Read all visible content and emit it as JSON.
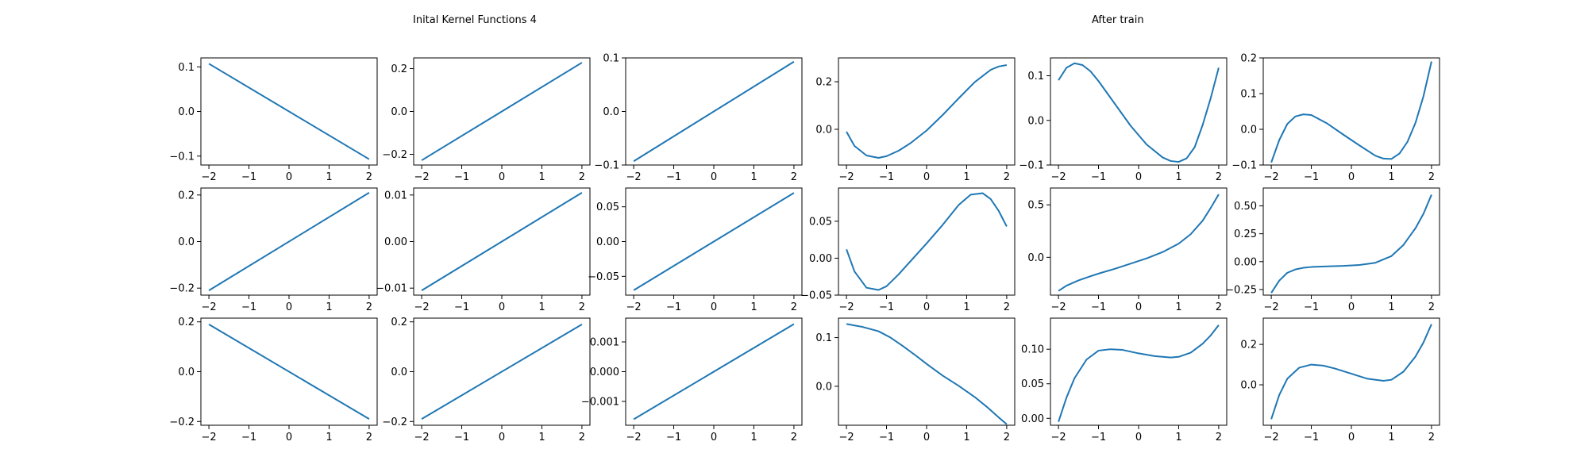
{
  "titles": {
    "left": "Inital Kernel Functions 4",
    "right": "After train"
  },
  "chart_data": {
    "type": "line",
    "grid": false,
    "line_color": "#1f77b4",
    "rows": 3,
    "cols": 6,
    "panels": [
      {
        "xlim": [
          -2.2,
          2.2
        ],
        "ylim": [
          -0.12,
          0.12
        ],
        "xticks": [
          -2,
          -1,
          0,
          1,
          2
        ],
        "xtick_labels": [
          "−2",
          "−1",
          "0",
          "1",
          "2"
        ],
        "yticks": [
          -0.1,
          0,
          0.1
        ],
        "ytick_labels": [
          "−0.1",
          "0.0",
          "0.1"
        ],
        "x": [
          -2,
          2
        ],
        "y": [
          0.107,
          -0.107
        ]
      },
      {
        "xlim": [
          -2.2,
          2.2
        ],
        "ylim": [
          -0.25,
          0.25
        ],
        "xticks": [
          -2,
          -1,
          0,
          1,
          2
        ],
        "xtick_labels": [
          "−2",
          "−1",
          "0",
          "1",
          "2"
        ],
        "yticks": [
          -0.2,
          0,
          0.2
        ],
        "ytick_labels": [
          "−0.2",
          "0.0",
          "0.2"
        ],
        "x": [
          -2,
          2
        ],
        "y": [
          -0.228,
          0.228
        ]
      },
      {
        "xlim": [
          -2.2,
          2.2
        ],
        "ylim": [
          -0.1,
          0.1
        ],
        "xticks": [
          -2,
          -1,
          0,
          1,
          2
        ],
        "xtick_labels": [
          "−2",
          "−1",
          "0",
          "1",
          "2"
        ],
        "yticks": [
          -0.1,
          0,
          0.1
        ],
        "ytick_labels": [
          "−0.1",
          "0.0",
          "0.1"
        ],
        "x": [
          -2,
          2
        ],
        "y": [
          -0.093,
          0.093
        ]
      },
      {
        "xlim": [
          -2.2,
          2.2
        ],
        "ylim": [
          -0.15,
          0.3
        ],
        "xticks": [
          -2,
          -1,
          0,
          1,
          2
        ],
        "xtick_labels": [
          "−2",
          "−1",
          "0",
          "1",
          "2"
        ],
        "yticks": [
          0,
          0.2
        ],
        "ytick_labels": [
          "0.0",
          "0.2"
        ],
        "x": [
          -2,
          -1.8,
          -1.5,
          -1.2,
          -1,
          -0.7,
          -0.4,
          0,
          0.4,
          0.8,
          1.2,
          1.6,
          1.8,
          2
        ],
        "y": [
          -0.01,
          -0.07,
          -0.11,
          -0.12,
          -0.113,
          -0.09,
          -0.058,
          -0.005,
          0.06,
          0.13,
          0.198,
          0.25,
          0.264,
          0.27
        ]
      },
      {
        "xlim": [
          -2.2,
          2.2
        ],
        "ylim": [
          -0.1,
          0.14
        ],
        "xticks": [
          -2,
          -1,
          0,
          1,
          2
        ],
        "xtick_labels": [
          "−2",
          "−1",
          "0",
          "1",
          "2"
        ],
        "yticks": [
          -0.1,
          0,
          0.1
        ],
        "ytick_labels": [
          "−0.1",
          "0.0",
          "0.1"
        ],
        "x": [
          -2,
          -1.8,
          -1.6,
          -1.4,
          -1.2,
          -1,
          -0.6,
          -0.2,
          0.2,
          0.6,
          0.8,
          1,
          1.2,
          1.4,
          1.6,
          1.8,
          2
        ],
        "y": [
          0.09,
          0.118,
          0.128,
          0.124,
          0.11,
          0.088,
          0.038,
          -0.012,
          -0.054,
          -0.083,
          -0.091,
          -0.093,
          -0.085,
          -0.06,
          -0.01,
          0.05,
          0.118
        ]
      },
      {
        "xlim": [
          -2.2,
          2.2
        ],
        "ylim": [
          -0.1,
          0.2
        ],
        "xticks": [
          -2,
          -1,
          0,
          1,
          2
        ],
        "xtick_labels": [
          "−2",
          "−1",
          "0",
          "1",
          "2"
        ],
        "yticks": [
          -0.1,
          0,
          0.1,
          0.2
        ],
        "ytick_labels": [
          "−0.1",
          "0.0",
          "0.1",
          "0.2"
        ],
        "x": [
          -2,
          -1.8,
          -1.6,
          -1.4,
          -1.2,
          -1,
          -0.6,
          -0.2,
          0.2,
          0.6,
          0.8,
          1,
          1.2,
          1.4,
          1.6,
          1.8,
          2
        ],
        "y": [
          -0.093,
          -0.03,
          0.015,
          0.036,
          0.042,
          0.04,
          0.016,
          -0.015,
          -0.045,
          -0.074,
          -0.082,
          -0.083,
          -0.068,
          -0.035,
          0.018,
          0.093,
          0.19
        ]
      },
      {
        "xlim": [
          -2.2,
          2.2
        ],
        "ylim": [
          -0.23,
          0.23
        ],
        "xticks": [
          -2,
          -1,
          0,
          1,
          2
        ],
        "xtick_labels": [
          "−2",
          "−1",
          "0",
          "1",
          "2"
        ],
        "yticks": [
          -0.2,
          0,
          0.2
        ],
        "ytick_labels": [
          "−0.2",
          "0.0",
          "0.2"
        ],
        "x": [
          -2,
          2
        ],
        "y": [
          -0.21,
          0.21
        ]
      },
      {
        "xlim": [
          -2.2,
          2.2
        ],
        "ylim": [
          -0.0115,
          0.0115
        ],
        "xticks": [
          -2,
          -1,
          0,
          1,
          2
        ],
        "xtick_labels": [
          "−2",
          "−1",
          "0",
          "1",
          "2"
        ],
        "yticks": [
          -0.01,
          0,
          0.01
        ],
        "ytick_labels": [
          "−0.01",
          "0.00",
          "0.01"
        ],
        "x": [
          -2,
          2
        ],
        "y": [
          -0.0105,
          0.0105
        ]
      },
      {
        "xlim": [
          -2.2,
          2.2
        ],
        "ylim": [
          -0.077,
          0.077
        ],
        "xticks": [
          -2,
          -1,
          0,
          1,
          2
        ],
        "xtick_labels": [
          "−2",
          "−1",
          "0",
          "1",
          "2"
        ],
        "yticks": [
          -0.05,
          0,
          0.05
        ],
        "ytick_labels": [
          "−0.05",
          "0.00",
          "0.05"
        ],
        "x": [
          -2,
          2
        ],
        "y": [
          -0.07,
          0.07
        ]
      },
      {
        "xlim": [
          -2.2,
          2.2
        ],
        "ylim": [
          -0.05,
          0.095
        ],
        "xticks": [
          -2,
          -1,
          0,
          1,
          2
        ],
        "xtick_labels": [
          "−2",
          "−1",
          "0",
          "1",
          "2"
        ],
        "yticks": [
          -0.05,
          0,
          0.05
        ],
        "ytick_labels": [
          "−0.05",
          "0.00",
          "0.05"
        ],
        "x": [
          -2,
          -1.8,
          -1.5,
          -1.2,
          -1,
          -0.7,
          -0.4,
          0,
          0.4,
          0.8,
          1.1,
          1.4,
          1.6,
          1.8,
          2
        ],
        "y": [
          0.012,
          -0.018,
          -0.04,
          -0.043,
          -0.038,
          -0.022,
          -0.004,
          0.02,
          0.045,
          0.072,
          0.086,
          0.088,
          0.08,
          0.064,
          0.043
        ]
      },
      {
        "xlim": [
          -2.2,
          2.2
        ],
        "ylim": [
          -0.36,
          0.66
        ],
        "xticks": [
          -2,
          -1,
          0,
          1,
          2
        ],
        "xtick_labels": [
          "−2",
          "−1",
          "0",
          "1",
          "2"
        ],
        "yticks": [
          0,
          0.5
        ],
        "ytick_labels": [
          "0.0",
          "0.5"
        ],
        "x": [
          -2,
          -1.8,
          -1.5,
          -1.2,
          -1,
          -0.6,
          -0.2,
          0.2,
          0.6,
          1,
          1.3,
          1.6,
          1.8,
          2
        ],
        "y": [
          -0.32,
          -0.27,
          -0.22,
          -0.18,
          -0.155,
          -0.11,
          -0.06,
          -0.01,
          0.05,
          0.13,
          0.22,
          0.35,
          0.47,
          0.6
        ]
      },
      {
        "xlim": [
          -2.2,
          2.2
        ],
        "ylim": [
          -0.3,
          0.66
        ],
        "xticks": [
          -2,
          -1,
          0,
          1,
          2
        ],
        "xtick_labels": [
          "−2",
          "−1",
          "0",
          "1",
          "2"
        ],
        "yticks": [
          -0.25,
          0,
          0.25,
          0.5
        ],
        "ytick_labels": [
          "−0.25",
          "0.00",
          "0.25",
          "0.50"
        ],
        "x": [
          -2,
          -1.8,
          -1.6,
          -1.4,
          -1.2,
          -1,
          -0.6,
          -0.2,
          0.2,
          0.6,
          1,
          1.3,
          1.6,
          1.8,
          2
        ],
        "y": [
          -0.28,
          -0.17,
          -0.1,
          -0.07,
          -0.055,
          -0.048,
          -0.042,
          -0.038,
          -0.03,
          -0.01,
          0.05,
          0.15,
          0.3,
          0.43,
          0.6
        ]
      },
      {
        "xlim": [
          -2.2,
          2.2
        ],
        "ylim": [
          -0.215,
          0.215
        ],
        "xticks": [
          -2,
          -1,
          0,
          1,
          2
        ],
        "xtick_labels": [
          "−2",
          "−1",
          "0",
          "1",
          "2"
        ],
        "yticks": [
          -0.2,
          0,
          0.2
        ],
        "ytick_labels": [
          "−0.2",
          "0.0",
          "0.2"
        ],
        "x": [
          -2,
          2
        ],
        "y": [
          0.19,
          -0.19
        ]
      },
      {
        "xlim": [
          -2.2,
          2.2
        ],
        "ylim": [
          -0.215,
          0.215
        ],
        "xticks": [
          -2,
          -1,
          0,
          1,
          2
        ],
        "xtick_labels": [
          "−2",
          "−1",
          "0",
          "1",
          "2"
        ],
        "yticks": [
          -0.2,
          0,
          0.2
        ],
        "ytick_labels": [
          "−0.2",
          "0.0",
          "0.2"
        ],
        "x": [
          -2,
          2
        ],
        "y": [
          -0.19,
          0.19
        ]
      },
      {
        "xlim": [
          -2.2,
          2.2
        ],
        "ylim": [
          -0.0018,
          0.0018
        ],
        "xticks": [
          -2,
          -1,
          0,
          1,
          2
        ],
        "xtick_labels": [
          "−2",
          "−1",
          "0",
          "1",
          "2"
        ],
        "yticks": [
          -0.001,
          0,
          0.001
        ],
        "ytick_labels": [
          "−0.001",
          "0.000",
          "0.001"
        ],
        "x": [
          -2,
          2
        ],
        "y": [
          -0.0016,
          0.0016
        ]
      },
      {
        "xlim": [
          -2.2,
          2.2
        ],
        "ylim": [
          -0.08,
          0.14
        ],
        "xticks": [
          -2,
          -1,
          0,
          1,
          2
        ],
        "xtick_labels": [
          "−2",
          "−1",
          "0",
          "1",
          "2"
        ],
        "yticks": [
          0,
          0.1
        ],
        "ytick_labels": [
          "0.0",
          "0.1"
        ],
        "x": [
          -2,
          -1.6,
          -1.2,
          -0.9,
          -0.6,
          -0.3,
          0,
          0.4,
          0.8,
          1.2,
          1.5,
          1.8,
          2
        ],
        "y": [
          0.128,
          0.122,
          0.113,
          0.1,
          0.083,
          0.065,
          0.046,
          0.022,
          0.001,
          -0.022,
          -0.042,
          -0.064,
          -0.078
        ]
      },
      {
        "xlim": [
          -2.2,
          2.2
        ],
        "ylim": [
          -0.01,
          0.145
        ],
        "xticks": [
          -2,
          -1,
          0,
          1,
          2
        ],
        "xtick_labels": [
          "−2",
          "−1",
          "0",
          "1",
          "2"
        ],
        "yticks": [
          0,
          0.05,
          0.1
        ],
        "ytick_labels": [
          "0.00",
          "0.05",
          "0.10"
        ],
        "x": [
          -2,
          -1.8,
          -1.6,
          -1.3,
          -1,
          -0.7,
          -0.4,
          0,
          0.4,
          0.8,
          1,
          1.3,
          1.6,
          1.8,
          2
        ],
        "y": [
          -0.005,
          0.03,
          0.058,
          0.085,
          0.098,
          0.1,
          0.099,
          0.094,
          0.09,
          0.088,
          0.089,
          0.095,
          0.108,
          0.12,
          0.135
        ]
      },
      {
        "xlim": [
          -2.2,
          2.2
        ],
        "ylim": [
          -0.2,
          0.33
        ],
        "xticks": [
          -2,
          -1,
          0,
          1,
          2
        ],
        "xtick_labels": [
          "−2",
          "−1",
          "0",
          "1",
          "2"
        ],
        "yticks": [
          0,
          0.2
        ],
        "ytick_labels": [
          "0.0",
          "0.2"
        ],
        "x": [
          -2,
          -1.8,
          -1.6,
          -1.3,
          -1,
          -0.7,
          -0.4,
          0,
          0.4,
          0.8,
          1,
          1.3,
          1.6,
          1.8,
          2
        ],
        "y": [
          -0.17,
          -0.05,
          0.03,
          0.085,
          0.1,
          0.095,
          0.08,
          0.055,
          0.03,
          0.02,
          0.025,
          0.065,
          0.14,
          0.21,
          0.3
        ]
      }
    ]
  }
}
